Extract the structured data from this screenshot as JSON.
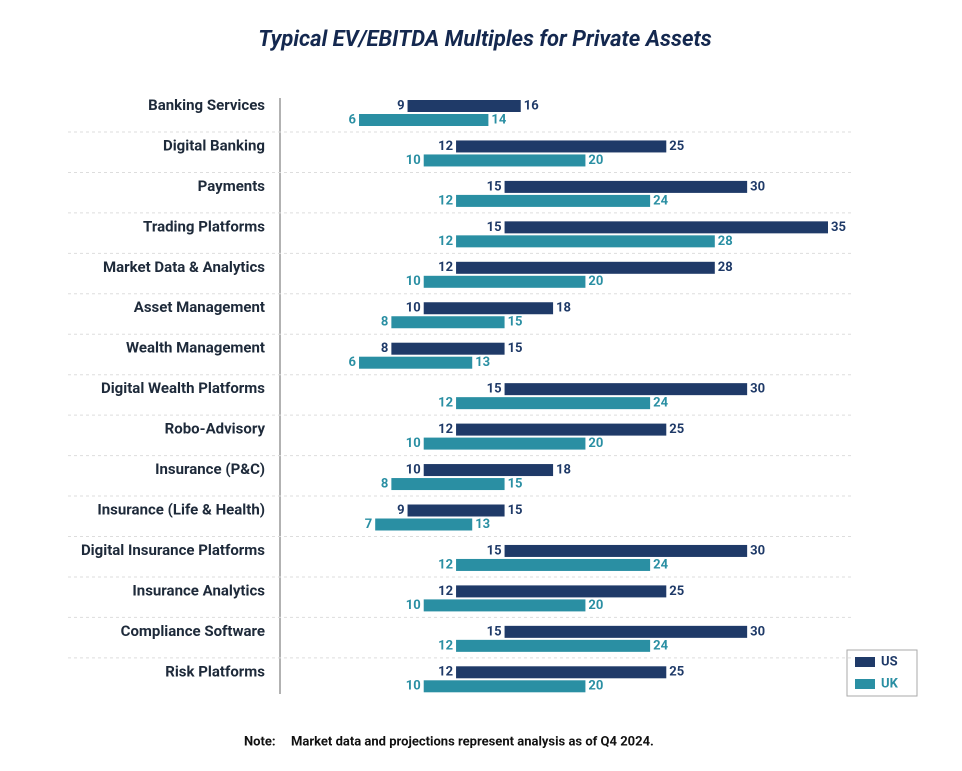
{
  "chart_data": {
    "type": "range-bar",
    "title": "Typical EV/EBITDA Multiples for Private Assets",
    "categories": [
      "Banking Services",
      "Digital Banking",
      "Payments",
      "Trading Platforms",
      "Market Data & Analytics",
      "Asset Management",
      "Wealth Management",
      "Digital Wealth Platforms",
      "Robo-Advisory",
      "Insurance (P&C)",
      "Insurance (Life & Health)",
      "Digital Insurance Platforms",
      "Insurance Analytics",
      "Compliance Software",
      "Risk Platforms"
    ],
    "series": [
      {
        "name": "US",
        "color": "#1f3a68",
        "low": [
          9,
          12,
          15,
          15,
          12,
          10,
          8,
          15,
          12,
          10,
          9,
          15,
          12,
          15,
          12
        ],
        "high": [
          16,
          25,
          30,
          35,
          28,
          18,
          15,
          30,
          25,
          18,
          15,
          30,
          25,
          30,
          25
        ]
      },
      {
        "name": "UK",
        "color": "#2a8fa3",
        "low": [
          6,
          10,
          12,
          12,
          10,
          8,
          6,
          12,
          10,
          8,
          7,
          12,
          10,
          12,
          10
        ],
        "high": [
          14,
          20,
          24,
          28,
          20,
          15,
          13,
          24,
          20,
          15,
          13,
          24,
          20,
          24,
          20
        ]
      }
    ],
    "xlim": [
      0,
      35
    ],
    "legend": "lower right",
    "note": {
      "label": "Note:",
      "text": "Market data and projections represent analysis as of Q4 2024."
    }
  }
}
